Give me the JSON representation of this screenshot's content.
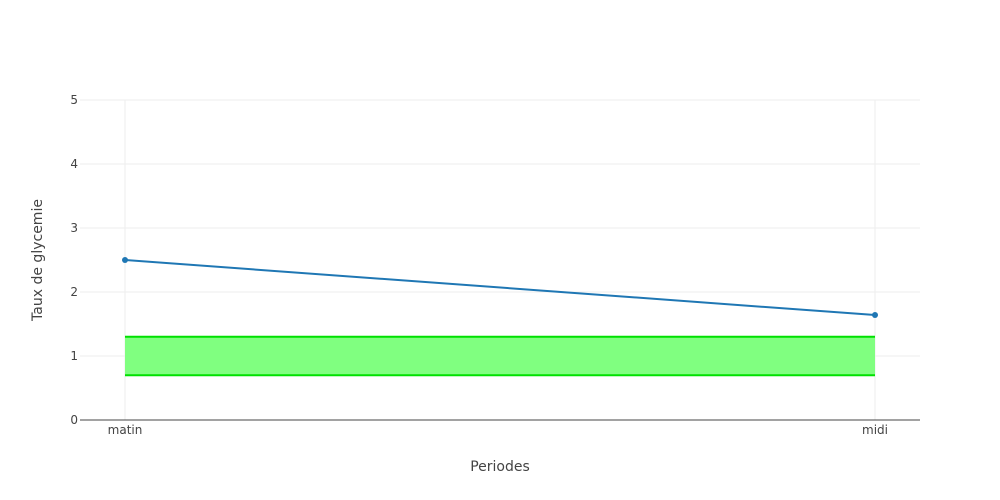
{
  "chart_data": {
    "type": "line",
    "categories": [
      "matin",
      "midi"
    ],
    "xlabel": "Periodes",
    "ylabel": "Taux de glycemie",
    "ylim": [
      0,
      5
    ],
    "yticks": [
      0,
      1,
      2,
      3,
      4,
      5
    ],
    "grid": true,
    "series": [
      {
        "values": [
          2.5,
          1.64
        ],
        "color": "#1f77b4",
        "markers": true
      }
    ],
    "band": {
      "lower": 0.7,
      "upper": 1.3,
      "fill_color": "#80ff80",
      "line_color": "#00e000"
    }
  }
}
